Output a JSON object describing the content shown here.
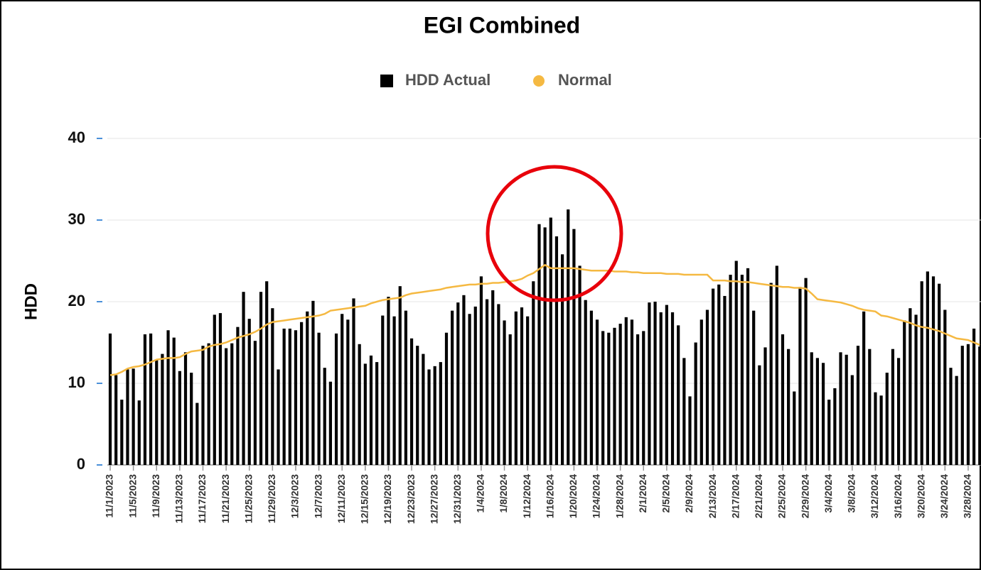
{
  "chart_data": {
    "type": "bar",
    "title": "EGI Combined",
    "y_label": "HDD",
    "categories": [
      "11/1/2023",
      null,
      null,
      null,
      "11/5/2023",
      null,
      null,
      null,
      "11/9/2023",
      null,
      null,
      null,
      "11/13/2023",
      null,
      null,
      null,
      "11/17/2023",
      null,
      null,
      null,
      "11/21/2023",
      null,
      null,
      null,
      "11/25/2023",
      null,
      null,
      null,
      "11/29/2023",
      null,
      null,
      null,
      "12/3/2023",
      null,
      null,
      null,
      "12/7/2023",
      null,
      null,
      null,
      "12/11/2023",
      null,
      null,
      null,
      "12/15/2023",
      null,
      null,
      null,
      "12/19/2023",
      null,
      null,
      null,
      "12/23/2023",
      null,
      null,
      null,
      "12/27/2023",
      null,
      null,
      null,
      "12/31/2023",
      null,
      null,
      null,
      "1/4/2024",
      null,
      null,
      null,
      "1/8/2024",
      null,
      null,
      null,
      "1/12/2024",
      null,
      null,
      null,
      "1/16/2024",
      null,
      null,
      null,
      "1/20/2024",
      null,
      null,
      null,
      "1/24/2024",
      null,
      null,
      null,
      "1/28/2024",
      null,
      null,
      null,
      "2/1/2024",
      null,
      null,
      null,
      "2/5/2024",
      null,
      null,
      null,
      "2/9/2024",
      null,
      null,
      null,
      "2/13/2024",
      null,
      null,
      null,
      "2/17/2024",
      null,
      null,
      null,
      "2/21/2024",
      null,
      null,
      null,
      "2/25/2024",
      null,
      null,
      null,
      "2/29/2024",
      null,
      null,
      null,
      "3/4/2024",
      null,
      null,
      null,
      "3/8/2024",
      null,
      null,
      null,
      "3/12/2024",
      null,
      null,
      null,
      "3/16/2024",
      null,
      null,
      null,
      "3/20/2024",
      null,
      null,
      null,
      "3/24/2024",
      null,
      null,
      null,
      "3/28/2024",
      null,
      null
    ],
    "series": [
      {
        "name": "HDD Actual",
        "type": "bar",
        "color": "#000000",
        "values": [
          16.1,
          11,
          8,
          11.7,
          11.8,
          7.9,
          16,
          16.1,
          12.9,
          13.6,
          16.5,
          15.6,
          11.5,
          13.8,
          11.3,
          7.6,
          14.6,
          14.9,
          18.4,
          18.6,
          14.3,
          14.9,
          16.9,
          21.2,
          17.9,
          15.2,
          21.2,
          22.5,
          19.2,
          11.7,
          16.7,
          16.7,
          16.5,
          17.5,
          18.8,
          20.1,
          16.2,
          11.9,
          10.2,
          16.1,
          18.5,
          17.8,
          20.4,
          14.8,
          12.4,
          13.4,
          12.6,
          18.3,
          20.6,
          18.2,
          21.9,
          18.9,
          15.5,
          14.6,
          13.6,
          11.7,
          12.1,
          12.6,
          16.2,
          18.9,
          19.9,
          20.8,
          18.5,
          19.4,
          23.1,
          20.3,
          21.4,
          19.7,
          17.7,
          16,
          18.8,
          19.3,
          18.2,
          22.5,
          29.5,
          29.1,
          30.3,
          28,
          25.8,
          31.3,
          28.9,
          24.4,
          20.2,
          18.9,
          17.8,
          16.4,
          16.2,
          16.8,
          17.3,
          18.1,
          17.8,
          16,
          16.4,
          19.9,
          20,
          18.7,
          19.6,
          18.7,
          17.1,
          13.1,
          8.4,
          15,
          17.8,
          19,
          21.6,
          22.1,
          20.7,
          23.3,
          25,
          23.3,
          24.1,
          18.9,
          12.2,
          14.4,
          22.3,
          24.4,
          16,
          14.2,
          9,
          21.8,
          22.9,
          13.8,
          13.1,
          12.5,
          8,
          9.4,
          13.8,
          13.5,
          11,
          14.6,
          18.8,
          14.2,
          8.9,
          8.5,
          11.3,
          14.2,
          13.1,
          17.7,
          19.2,
          18.4,
          22.5,
          23.7,
          23.1,
          22.2,
          19,
          11.9,
          10.9,
          14.6,
          14.8,
          16.7,
          14.5
        ]
      },
      {
        "name": "Normal",
        "type": "line",
        "color": "#f5b942",
        "values": [
          11.0,
          11.1,
          11.4,
          11.8,
          12.0,
          12.1,
          12.3,
          12.6,
          12.9,
          13.0,
          13.1,
          13.1,
          13.2,
          13.6,
          13.9,
          14.0,
          14.1,
          14.5,
          14.7,
          14.8,
          15.0,
          15.3,
          15.6,
          15.8,
          16.0,
          16.3,
          16.7,
          17.2,
          17.5,
          17.6,
          17.7,
          17.8,
          17.9,
          18.0,
          18.1,
          18.2,
          18.3,
          18.5,
          18.9,
          19.0,
          19.1,
          19.2,
          19.3,
          19.4,
          19.5,
          19.8,
          20.0,
          20.2,
          20.3,
          20.4,
          20.5,
          20.8,
          21.0,
          21.1,
          21.2,
          21.3,
          21.4,
          21.5,
          21.7,
          21.8,
          21.9,
          22.0,
          22.1,
          22.1,
          22.2,
          22.2,
          22.3,
          22.3,
          22.4,
          22.5,
          22.6,
          22.8,
          23.2,
          23.5,
          24.0,
          24.5,
          24.1,
          24.1,
          24.1,
          24.1,
          24.1,
          24.0,
          23.9,
          23.8,
          23.8,
          23.8,
          23.8,
          23.7,
          23.7,
          23.7,
          23.6,
          23.6,
          23.5,
          23.5,
          23.5,
          23.5,
          23.4,
          23.4,
          23.4,
          23.3,
          23.3,
          23.3,
          23.3,
          23.3,
          22.6,
          22.6,
          22.6,
          22.5,
          22.5,
          22.4,
          22.4,
          22.3,
          22.2,
          22.1,
          22.0,
          21.9,
          21.8,
          21.8,
          21.7,
          21.7,
          21.6,
          21.0,
          20.3,
          20.2,
          20.1,
          20.0,
          19.9,
          19.7,
          19.5,
          19.2,
          19.0,
          18.9,
          18.8,
          18.3,
          18.2,
          18.0,
          17.8,
          17.6,
          17.4,
          17.1,
          16.9,
          16.8,
          16.6,
          16.4,
          16.1,
          15.8,
          15.5,
          15.4,
          15.3,
          15.0,
          14.7
        ]
      }
    ],
    "ylim": [
      0,
      40
    ],
    "yticks": [
      0,
      10,
      20,
      30,
      40
    ],
    "grid": true
  }
}
